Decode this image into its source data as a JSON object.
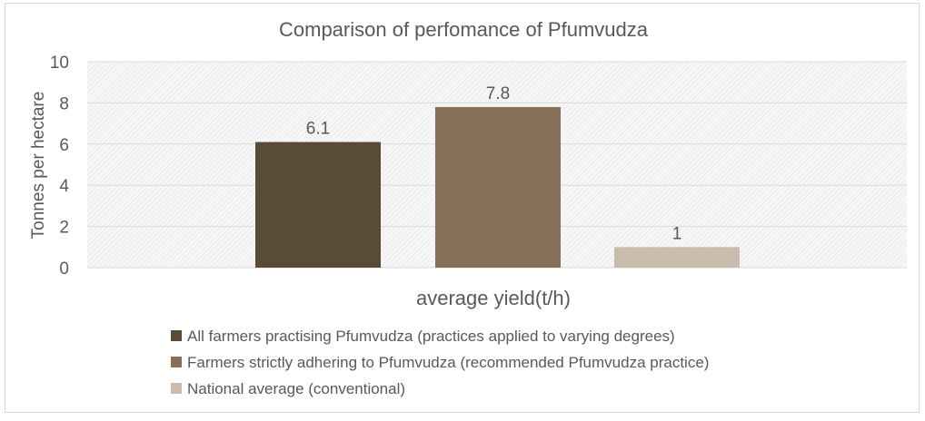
{
  "chart_data": {
    "type": "bar",
    "title": "Comparison of perfomance of Pfumvudza",
    "xlabel": "average yield(t/h)",
    "ylabel": "Tonnes per hectare",
    "ylim": [
      0,
      10
    ],
    "yticks": [
      "0",
      "2",
      "4",
      "6",
      "8",
      "10"
    ],
    "grid": true,
    "legend_position": "bottom",
    "series": [
      {
        "name": "All farmers practising Pfumvudza (practices applied to varying degrees)",
        "value": 6.1,
        "label": "6.1",
        "color": "#5a4a38"
      },
      {
        "name": "Farmers strictly adhering to Pfumvudza (recommended Pfumvudza practice)",
        "value": 7.8,
        "label": "7.8",
        "color": "#866f56"
      },
      {
        "name": "National average (conventional)",
        "value": 1,
        "label": "1",
        "color": "#c9bcad"
      }
    ]
  }
}
